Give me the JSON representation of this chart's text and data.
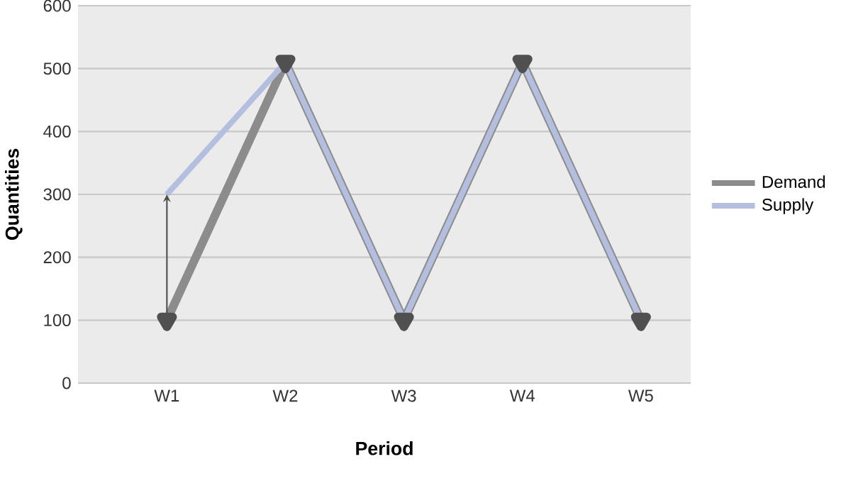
{
  "chart_data": {
    "type": "line",
    "xlabel": "Period",
    "ylabel": "Quantities",
    "categories": [
      "W1",
      "W2",
      "W3",
      "W4",
      "W5"
    ],
    "series": [
      {
        "name": "Demand",
        "color": "#8c8c8c",
        "values": [
          100,
          510,
          100,
          510,
          100
        ],
        "marker": "triangle"
      },
      {
        "name": "Supply",
        "color": "#b4bfe0",
        "values": [
          300,
          510,
          100,
          510,
          100
        ]
      }
    ],
    "ylim": [
      0,
      600
    ],
    "yticks": [
      0,
      100,
      200,
      300,
      400,
      500,
      600
    ],
    "grid": "y",
    "legend": "right"
  }
}
